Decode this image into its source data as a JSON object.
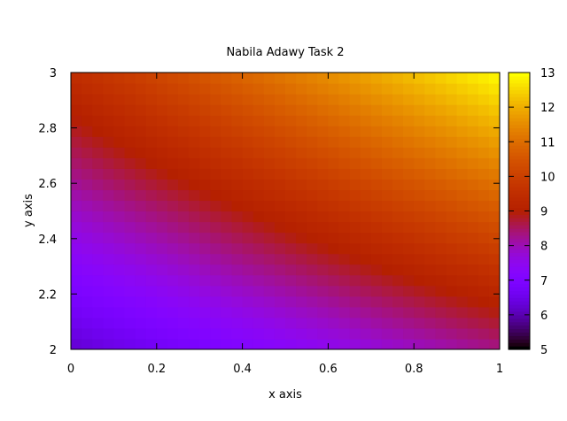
{
  "chart_data": {
    "type": "heatmap",
    "title": "Nabila Adawy Task 2",
    "xlabel": "x axis",
    "ylabel": "y axis",
    "xlim": [
      0,
      1
    ],
    "ylim": [
      2,
      3
    ],
    "x_ticks": [
      0,
      0.2,
      0.4,
      0.6,
      0.8,
      1
    ],
    "x_tick_labels": [
      "0",
      "0.2",
      "0.4",
      "0.6",
      "0.8",
      "1"
    ],
    "y_ticks": [
      2,
      2.2,
      2.4,
      2.6,
      2.8,
      3
    ],
    "y_tick_labels": [
      "2",
      "2.2",
      "2.4",
      "2.6",
      "2.8",
      "3"
    ],
    "colorbar": {
      "range": [
        5,
        13
      ],
      "ticks": [
        5,
        6,
        7,
        8,
        9,
        10,
        11,
        12,
        13
      ],
      "tick_labels": [
        "5",
        "6",
        "7",
        "8",
        "9",
        "10",
        "11",
        "12",
        "13"
      ],
      "palette": "gnuplot"
    },
    "z_corners": {
      "x0_y2": 6.2,
      "x1_y2": 8.3,
      "x0_y3": 9.5,
      "x1_y3": 13
    },
    "grid": false,
    "legend": "none"
  }
}
